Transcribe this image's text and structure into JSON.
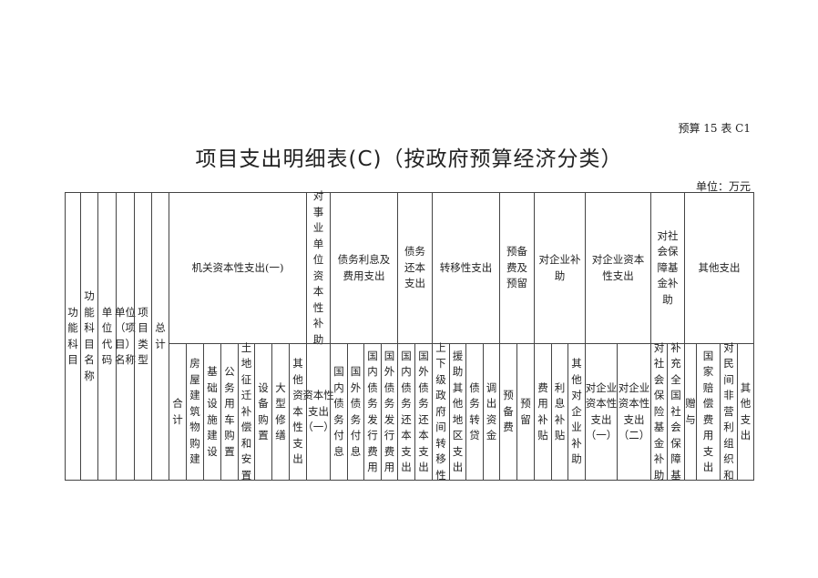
{
  "form_code": "预算 15 表 C1",
  "title": "项目支出明细表(C)（按政府预算经济分类）",
  "unit": "单位：万元",
  "table": {
    "fixed_columns": [
      "功能科目",
      "功能科目名称",
      "单位代码",
      "单位（项目）名称",
      "项目类型",
      "总计"
    ],
    "groups": [
      {
        "label": "机关资本性支出(一)",
        "items": [
          "合计",
          "房屋建筑物购建",
          "基础设施建设",
          "公务用车购置",
          "土地征迁补偿和安置",
          "设备购置",
          "大型修缮",
          "其他资本性支出"
        ]
      },
      {
        "label": "对事业单位资本性补助",
        "items": [
          "资本性支出（一）"
        ]
      },
      {
        "label": "债务利息及费用支出",
        "items": [
          "国内债务付息",
          "国外债务付息",
          "国内债务发行费用",
          "国外债务发行费用"
        ]
      },
      {
        "label": "债务还本支出",
        "items": [
          "国内债务还本支出",
          "国外债务还本支出"
        ]
      },
      {
        "label": "转移性支出",
        "items": [
          "上下级政府间转移性",
          "援助其他地区支出",
          "债务转贷",
          "调出资金"
        ]
      },
      {
        "label": "预备费及预留",
        "items": [
          "预备费",
          "预留"
        ]
      },
      {
        "label": "对企业补助",
        "items": [
          "费用补贴",
          "利息补贴",
          "其他对企业补助"
        ]
      },
      {
        "label": "对企业资本性支出",
        "items": [
          "对企业资本性支出（一）",
          "对企业资本性支出（二）"
        ]
      },
      {
        "label": "对社会保障基金补助",
        "items": [
          "对社会保险基金补助",
          "补充全国社会保障基"
        ]
      },
      {
        "label": "其他支出",
        "items": [
          "赠与",
          "国家赔偿费用支出",
          "对民间非营利组织和",
          "其他支出"
        ]
      }
    ]
  }
}
